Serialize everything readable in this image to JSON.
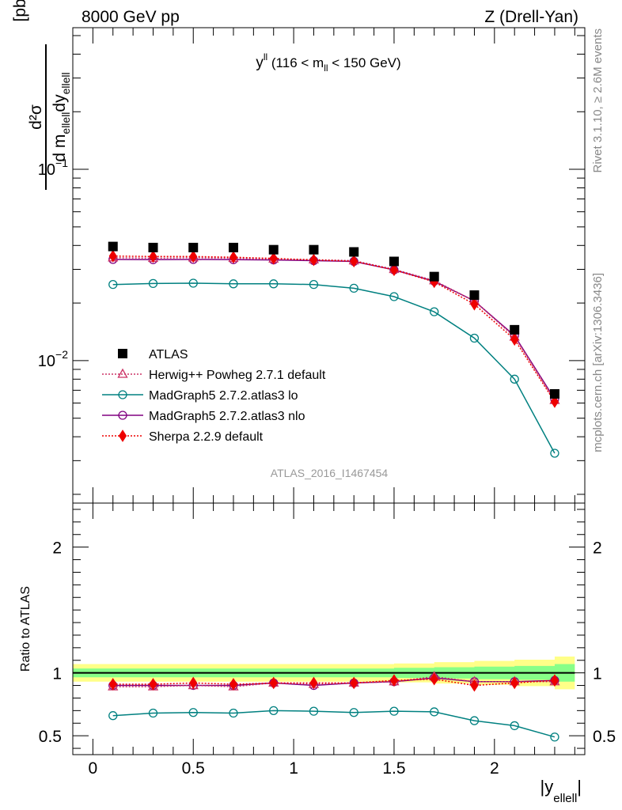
{
  "header": {
    "left": "8000 GeV pp",
    "right": "Z (Drell-Yan)"
  },
  "plot_title": {
    "main": "y",
    "sup": "ll",
    "range_open": " (116 < m",
    "range_sub": "ll",
    "range_close": " < 150 GeV)"
  },
  "side_labels": {
    "rivet": "Rivet 3.1.10, ≥ 2.6M events",
    "mcplots": "mcplots.cern.ch [arXiv:1306.3436]"
  },
  "watermark": "ATLAS_2016_I1467454",
  "y_label": {
    "numerator": "d²σ",
    "denominator": "d m",
    "den_sub1": "ellell",
    "den_dy": "dy",
    "den_sub2": "ellell",
    "unit": "[pb/GeV]"
  },
  "ratio_label": "Ratio to ATLAS",
  "x_label": {
    "main": "|y",
    "sub": "ellell",
    "close": "|"
  },
  "chart_data": {
    "type": "line",
    "x": [
      0.1,
      0.3,
      0.5,
      0.7,
      0.9,
      1.1,
      1.3,
      1.5,
      1.7,
      1.9,
      2.1,
      2.3
    ],
    "xlim": [
      -0.1,
      2.45
    ],
    "x_ticks": [
      0,
      0.5,
      1,
      1.5,
      2
    ],
    "x_tick_labels": [
      "0",
      "0.5",
      "1",
      "1.5",
      "2"
    ],
    "main_panel": {
      "yscale": "log",
      "ylim": [
        0.0018,
        0.55
      ],
      "y_tick_labels": [
        {
          "value": 0.1,
          "base": "10",
          "exp": "−1"
        },
        {
          "value": 0.01,
          "base": "10",
          "exp": "−2"
        }
      ]
    },
    "ratio_panel": {
      "ylim": [
        0.35,
        2.35
      ],
      "y_ticks": [
        0.5,
        1,
        2
      ],
      "y_tick_labels": [
        "0.5",
        "1",
        "2"
      ],
      "band_x": [
        -0.1,
        0.1,
        0.3,
        0.5,
        0.7,
        0.9,
        1.1,
        1.3,
        1.5,
        1.7,
        1.9,
        2.1,
        2.3,
        2.4
      ],
      "band_inner": [
        0.035,
        0.035,
        0.035,
        0.035,
        0.035,
        0.035,
        0.035,
        0.035,
        0.04,
        0.045,
        0.05,
        0.055,
        0.07,
        0.07
      ],
      "band_outer": [
        0.07,
        0.07,
        0.07,
        0.07,
        0.07,
        0.07,
        0.07,
        0.07,
        0.075,
        0.085,
        0.095,
        0.105,
        0.13,
        0.13
      ]
    },
    "legend": {
      "placement": "lower-left"
    },
    "series": [
      {
        "name": "ATLAS",
        "key": "atlas",
        "color": "#000000",
        "marker": "square",
        "values": [
          0.0395,
          0.039,
          0.039,
          0.039,
          0.038,
          0.038,
          0.037,
          0.033,
          0.0275,
          0.022,
          0.0145,
          0.0067
        ]
      },
      {
        "name": "Herwig++ Powheg 2.7.1 default",
        "key": "herwig",
        "color": "#cc3366",
        "marker": "triangle",
        "line": "dotted",
        "values": [
          0.0345,
          0.0343,
          0.0345,
          0.0343,
          0.034,
          0.0337,
          0.0333,
          0.03,
          0.0262,
          0.0205,
          0.0133,
          0.0062
        ],
        "ratio": [
          0.89,
          0.89,
          0.9,
          0.89,
          0.92,
          0.91,
          0.92,
          0.93,
          0.97,
          0.93,
          0.93,
          0.93
        ]
      },
      {
        "name": "MadGraph5 2.7.2.atlas3 lo",
        "key": "mg_lo",
        "color": "#008080",
        "marker": "circle",
        "line": "solid",
        "values": [
          0.025,
          0.0253,
          0.0254,
          0.0252,
          0.0252,
          0.025,
          0.0239,
          0.0216,
          0.018,
          0.0131,
          0.008,
          0.00328
        ],
        "ratio": [
          0.66,
          0.68,
          0.685,
          0.68,
          0.7,
          0.695,
          0.685,
          0.695,
          0.69,
          0.62,
          0.58,
          0.49
        ]
      },
      {
        "name": "MadGraph5 2.7.2.atlas3 nlo",
        "key": "mg_nlo",
        "color": "#800080",
        "marker": "circle",
        "line": "solid",
        "values": [
          0.0338,
          0.0337,
          0.0338,
          0.0337,
          0.0336,
          0.0333,
          0.033,
          0.0298,
          0.026,
          0.0205,
          0.0135,
          0.0063
        ],
        "ratio": [
          0.9,
          0.9,
          0.9,
          0.9,
          0.92,
          0.9,
          0.92,
          0.93,
          0.96,
          0.93,
          0.93,
          0.94
        ]
      },
      {
        "name": "Sherpa 2.2.9 default",
        "key": "sherpa",
        "color": "#ee0000",
        "marker": "diamond",
        "line": "dotted",
        "values": [
          0.0352,
          0.035,
          0.035,
          0.0347,
          0.0342,
          0.0336,
          0.0331,
          0.0298,
          0.0258,
          0.0197,
          0.0129,
          0.0061
        ],
        "ratio": [
          0.91,
          0.91,
          0.92,
          0.91,
          0.92,
          0.92,
          0.92,
          0.94,
          0.95,
          0.9,
          0.92,
          0.94
        ]
      }
    ]
  }
}
